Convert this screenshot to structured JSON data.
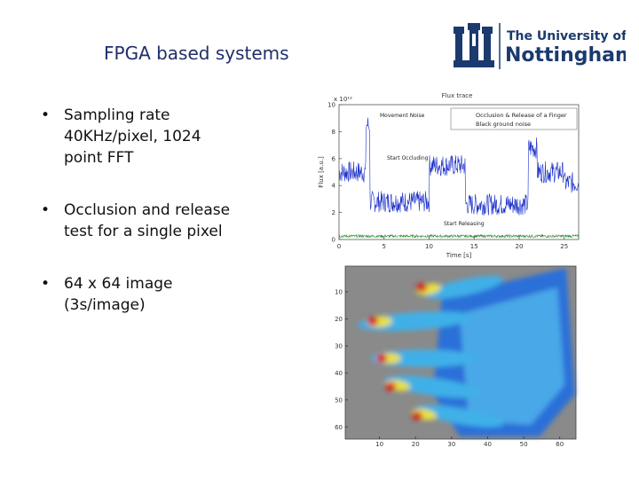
{
  "title": "FPGA based systems",
  "logo": {
    "line1": "The University of",
    "line2": "Nottingham"
  },
  "bullets": [
    [
      "Sampling rate",
      "40KHz/pixel, 1024",
      "point FFT"
    ],
    [
      "Occlusion and release",
      "test for a single pixel"
    ],
    [
      "64 x 64 image",
      "(3s/image)"
    ]
  ],
  "flux_chart": {
    "title": "Flux trace",
    "x_label": "Time [s]",
    "y_label": "Flux [a.u.]",
    "y_exponent": "x 10¹²",
    "legend": [
      "Occlusion & Release of a Finger",
      "Black ground noise"
    ],
    "annotations": [
      "Movement Noise",
      "Start Occluding",
      "Start Releasing"
    ],
    "xlim": [
      0,
      26.6
    ],
    "xticks": [
      0,
      5,
      10,
      15,
      20,
      25
    ],
    "ylim": [
      0,
      10
    ],
    "yticks": [
      0,
      2,
      4,
      6,
      8,
      10
    ]
  },
  "image_chart": {
    "xlim": [
      0.5,
      64.5
    ],
    "xticks": [
      10,
      20,
      30,
      40,
      50,
      60
    ],
    "ylim": [
      0.5,
      64.5
    ],
    "yticks": [
      10,
      20,
      30,
      40,
      50,
      60
    ]
  }
}
